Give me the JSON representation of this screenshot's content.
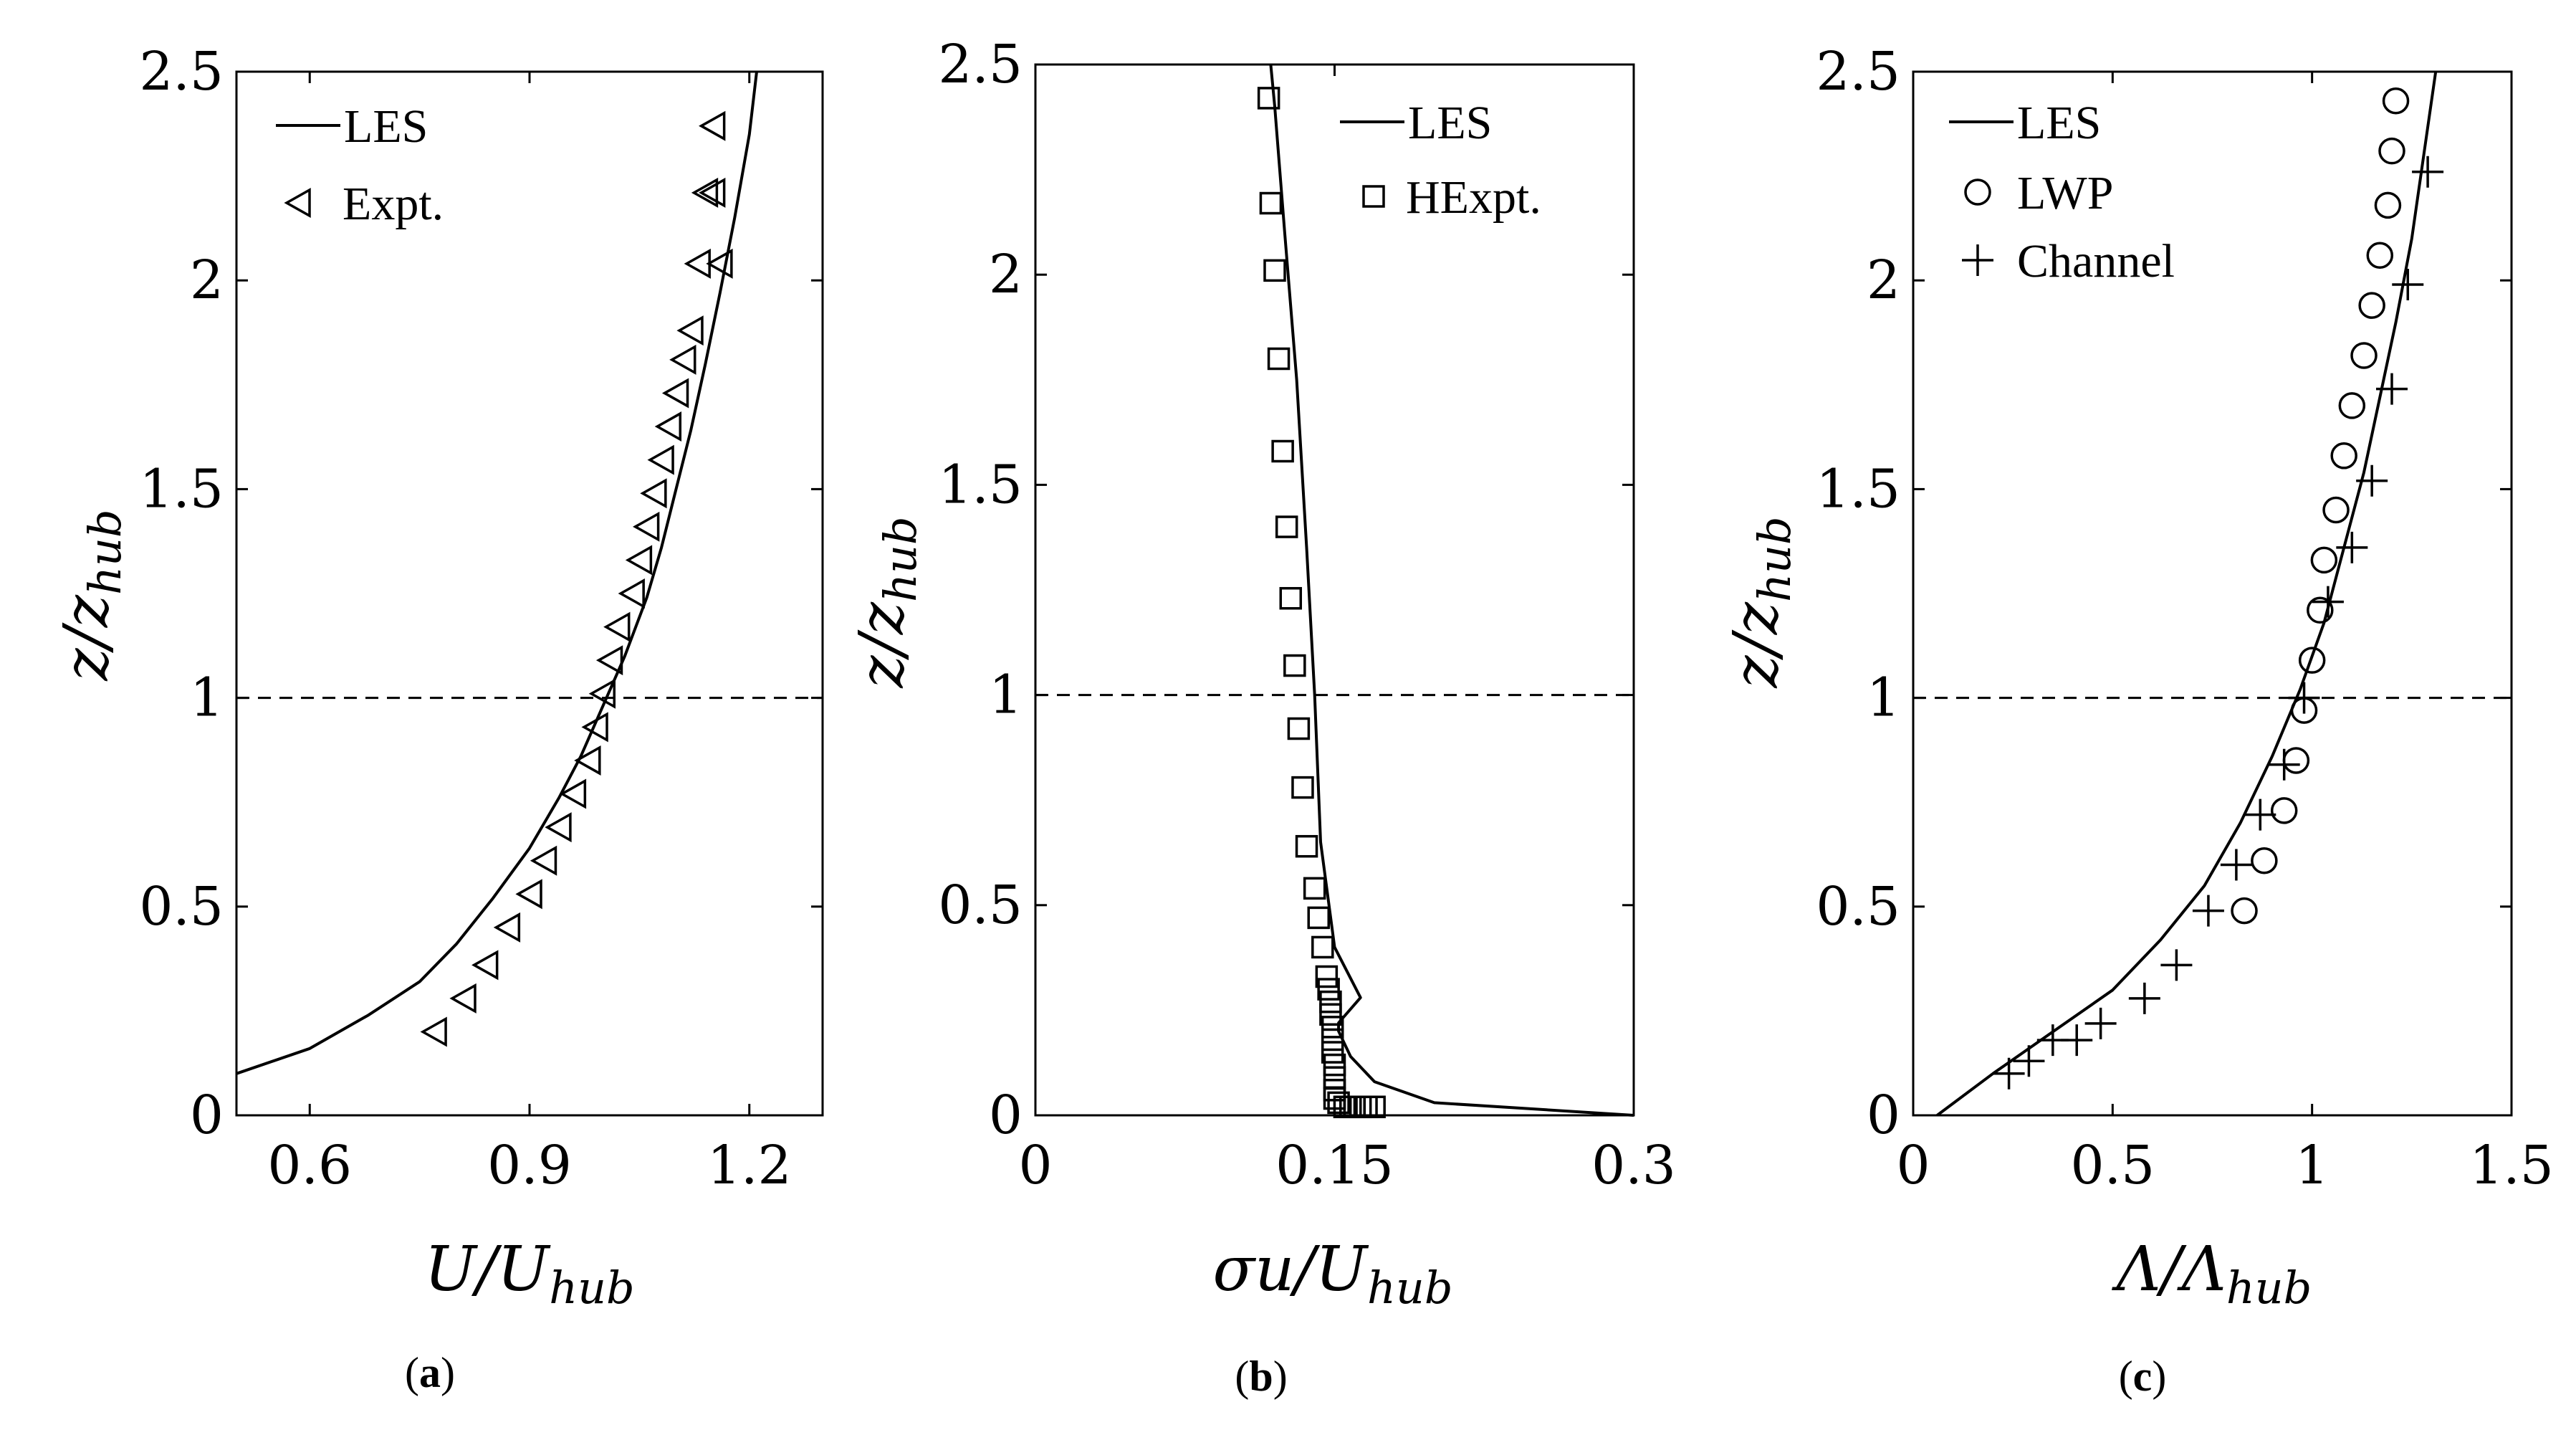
{
  "chart_data": [
    {
      "type": "line",
      "panel": "(a)",
      "caption_letter": "a",
      "xlabel_main": "U/U",
      "xlabel_sub": "hub",
      "ylabel_main": "z/z",
      "ylabel_sub": "hub",
      "xlim": [
        0.5,
        1.3
      ],
      "ylim": [
        0,
        2.5
      ],
      "xticks": [
        0.6,
        0.9,
        1.2
      ],
      "xtick_labels": [
        "0.6",
        "0.9",
        "1.2"
      ],
      "yticks": [
        0,
        0.5,
        1,
        1.5,
        2,
        2.5
      ],
      "ytick_labels": [
        "0",
        "0.5",
        "1",
        "1.5",
        "2",
        "2.5"
      ],
      "hub_line_y": 1,
      "legend_position": "top-left",
      "series": [
        {
          "name": "LES",
          "legend": "LES",
          "style": "line",
          "x": [
            0.5,
            0.6,
            0.68,
            0.75,
            0.8,
            0.85,
            0.9,
            0.94,
            0.97,
            1.0,
            1.03,
            1.06,
            1.08,
            1.1,
            1.12,
            1.14,
            1.16,
            1.18,
            1.2,
            1.21
          ],
          "y": [
            0.1,
            0.16,
            0.24,
            0.32,
            0.41,
            0.52,
            0.64,
            0.76,
            0.86,
            0.98,
            1.1,
            1.24,
            1.36,
            1.5,
            1.64,
            1.8,
            1.97,
            2.15,
            2.35,
            2.5
          ]
        },
        {
          "name": "Expt.",
          "legend": "Expt.",
          "style": "marker",
          "marker": "triangle-left",
          "x": [
            0.77,
            0.81,
            0.84,
            0.87,
            0.9,
            0.92,
            0.94,
            0.96,
            0.98,
            0.99,
            1.0,
            1.01,
            1.02,
            1.04,
            1.05,
            1.06,
            1.07,
            1.08,
            1.09,
            1.1,
            1.11,
            1.12,
            1.13,
            1.14,
            1.15,
            1.16,
            1.15
          ],
          "y": [
            0.2,
            0.28,
            0.36,
            0.45,
            0.53,
            0.61,
            0.69,
            0.77,
            0.85,
            0.93,
            1.01,
            1.09,
            1.17,
            1.25,
            1.33,
            1.41,
            1.49,
            1.57,
            1.65,
            1.73,
            1.81,
            1.88,
            2.04,
            2.21,
            2.37,
            2.04,
            2.21
          ]
        }
      ]
    },
    {
      "type": "line",
      "panel": "(b)",
      "caption_letter": "b",
      "xlabel_main": "σu/U",
      "xlabel_sub": "hub",
      "ylabel_main": "z/z",
      "ylabel_sub": "hub",
      "xlim": [
        0,
        0.3
      ],
      "ylim": [
        0,
        2.5
      ],
      "xticks": [
        0,
        0.15,
        0.3
      ],
      "xtick_labels": [
        "0",
        "0.15",
        "0.3"
      ],
      "yticks": [
        0,
        0.5,
        1,
        1.5,
        2,
        2.5
      ],
      "ytick_labels": [
        "0",
        "0.5",
        "1",
        "1.5",
        "2",
        "2.5"
      ],
      "hub_line_y": 1,
      "legend_position": "top-right",
      "series": [
        {
          "name": "LES",
          "legend": "LES",
          "style": "line",
          "x": [
            0.3,
            0.2,
            0.17,
            0.158,
            0.152,
            0.152,
            0.163,
            0.15,
            0.143,
            0.14,
            0.136,
            0.131,
            0.125,
            0.12,
            0.118
          ],
          "y": [
            0.0,
            0.03,
            0.08,
            0.14,
            0.2,
            0.22,
            0.28,
            0.4,
            0.65,
            1.0,
            1.35,
            1.75,
            2.1,
            2.4,
            2.5
          ]
        },
        {
          "name": "HExpt.",
          "legend": "HExpt.",
          "style": "marker",
          "marker": "square",
          "x": [
            0.117,
            0.118,
            0.12,
            0.122,
            0.124,
            0.126,
            0.128,
            0.13,
            0.132,
            0.134,
            0.136,
            0.14,
            0.142,
            0.144,
            0.146,
            0.147,
            0.148,
            0.148,
            0.149,
            0.149,
            0.149,
            0.15,
            0.15,
            0.15,
            0.15,
            0.152,
            0.155,
            0.158,
            0.16,
            0.163,
            0.166,
            0.17
          ],
          "y": [
            2.42,
            2.17,
            2.01,
            1.8,
            1.58,
            1.4,
            1.23,
            1.07,
            0.92,
            0.78,
            0.64,
            0.54,
            0.47,
            0.4,
            0.33,
            0.3,
            0.27,
            0.24,
            0.21,
            0.18,
            0.15,
            0.12,
            0.09,
            0.06,
            0.04,
            0.03,
            0.02,
            0.02,
            0.02,
            0.02,
            0.02,
            0.02
          ]
        }
      ]
    },
    {
      "type": "line",
      "panel": "(c)",
      "caption_letter": "c",
      "xlabel_main": "Λ/Λ",
      "xlabel_sub": "hub",
      "ylabel_main": "z/z",
      "ylabel_sub": "hub",
      "xlim": [
        0,
        1.5
      ],
      "ylim": [
        0,
        2.5
      ],
      "xticks": [
        0,
        0.5,
        1,
        1.5
      ],
      "xtick_labels": [
        "0",
        "0.5",
        "1",
        "1.5"
      ],
      "yticks": [
        0,
        0.5,
        1,
        1.5,
        2,
        2.5
      ],
      "ytick_labels": [
        "0",
        "0.5",
        "1",
        "1.5",
        "2",
        "2.5"
      ],
      "hub_line_y": 1,
      "legend_position": "top-left",
      "series": [
        {
          "name": "LES",
          "legend": "LES",
          "style": "line",
          "x": [
            0.06,
            0.2,
            0.35,
            0.5,
            0.62,
            0.73,
            0.82,
            0.9,
            0.97,
            1.03,
            1.08,
            1.13,
            1.17,
            1.21,
            1.25,
            1.28,
            1.31
          ],
          "y": [
            0.0,
            0.1,
            0.2,
            0.3,
            0.42,
            0.55,
            0.7,
            0.86,
            1.02,
            1.18,
            1.36,
            1.54,
            1.72,
            1.9,
            2.1,
            2.3,
            2.5
          ]
        },
        {
          "name": "LWP",
          "legend": "LWP",
          "style": "marker",
          "marker": "circle",
          "x": [
            0.83,
            0.88,
            0.93,
            0.96,
            0.98,
            1.0,
            1.02,
            1.03,
            1.06,
            1.08,
            1.1,
            1.13,
            1.15,
            1.17,
            1.19,
            1.2,
            1.21
          ],
          "y": [
            0.49,
            0.61,
            0.73,
            0.85,
            0.97,
            1.09,
            1.21,
            1.33,
            1.45,
            1.58,
            1.7,
            1.82,
            1.94,
            2.06,
            2.18,
            2.31,
            2.43
          ]
        },
        {
          "name": "Channel",
          "legend": "Channel",
          "style": "marker",
          "marker": "plus",
          "x": [
            0.24,
            0.29,
            0.35,
            0.41,
            0.47,
            0.58,
            0.66,
            0.74,
            0.81,
            0.87,
            0.93,
            0.98,
            1.04,
            1.1,
            1.15,
            1.2,
            1.24,
            1.29
          ],
          "y": [
            0.1,
            0.13,
            0.18,
            0.18,
            0.22,
            0.28,
            0.36,
            0.49,
            0.6,
            0.72,
            0.84,
            1.0,
            1.23,
            1.36,
            1.52,
            1.74,
            1.99,
            2.26
          ]
        }
      ]
    }
  ]
}
